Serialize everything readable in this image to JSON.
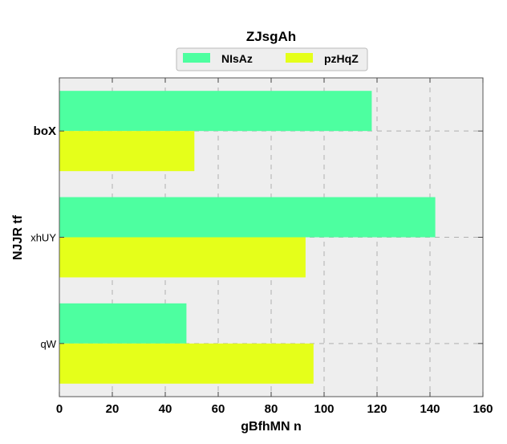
{
  "chart_data": {
    "type": "bar",
    "orientation": "horizontal",
    "title": "ZJsgAh",
    "xlabel": "gBfhMN n",
    "ylabel": "NJJR tf",
    "categories": [
      "qW",
      "xhUY",
      "boX"
    ],
    "category_label_bold": [
      false,
      false,
      true
    ],
    "series": [
      {
        "name": "NIsAz",
        "values": [
          48,
          142,
          118
        ],
        "color": "#4dffa0"
      },
      {
        "name": "pzHqZ",
        "values": [
          96,
          93,
          51
        ],
        "color": "#e5ff1a"
      }
    ],
    "xlim": [
      0,
      160
    ],
    "xticks": [
      0,
      20,
      40,
      60,
      80,
      100,
      120,
      140,
      160
    ],
    "grid": true,
    "legend_position": "top-center",
    "background_color": "#eeeeee"
  }
}
